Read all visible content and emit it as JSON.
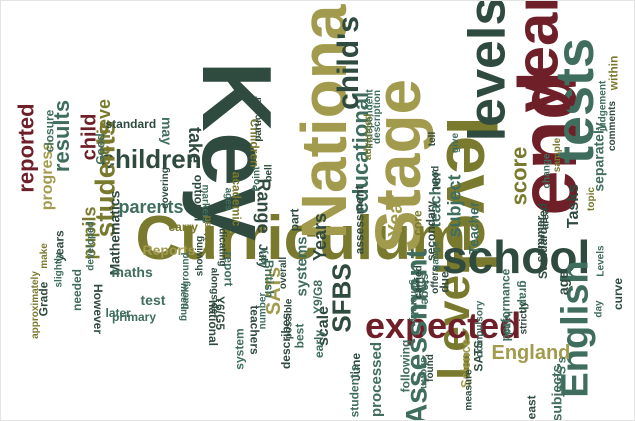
{
  "palette": {
    "dark_green": "#2f4a3e",
    "teal": "#3f6d5e",
    "olive": "#7a7a2e",
    "khaki": "#a29a4c",
    "maroon": "#6e1f28"
  },
  "words": [
    {
      "text": "Curriculum",
      "color": "olive"
    },
    {
      "text": "Key",
      "color": "dark_green"
    },
    {
      "text": "Stage",
      "color": "khaki"
    },
    {
      "text": "National",
      "color": "khaki"
    },
    {
      "text": "end",
      "color": "maroon"
    },
    {
      "text": "level",
      "color": "olive"
    },
    {
      "text": "tests",
      "color": "teal"
    },
    {
      "text": "Level",
      "color": "olive"
    },
    {
      "text": "year",
      "color": "maroon"
    },
    {
      "text": "levels",
      "color": "dark_green"
    },
    {
      "text": "school",
      "color": "dark_green"
    },
    {
      "text": "expected",
      "color": "maroon"
    },
    {
      "text": "English",
      "color": "teal"
    },
    {
      "text": "Assessment",
      "color": "teal"
    },
    {
      "text": "children",
      "color": "dark_green"
    },
    {
      "text": "students",
      "color": "olive"
    },
    {
      "text": "educational",
      "color": "teal"
    },
    {
      "text": "child's",
      "color": "dark_green"
    },
    {
      "text": "SFBS",
      "color": "dark_green"
    },
    {
      "text": "England",
      "color": "khaki"
    },
    {
      "text": "reported",
      "color": "maroon"
    },
    {
      "text": "results",
      "color": "teal"
    },
    {
      "text": "child",
      "color": "maroon"
    },
    {
      "text": "pupils",
      "color": "olive"
    },
    {
      "text": "achieve",
      "color": "olive"
    },
    {
      "text": "parents",
      "color": "teal"
    },
    {
      "text": "take",
      "color": "dark_green"
    },
    {
      "text": "Range",
      "color": "dark_green"
    },
    {
      "text": "score",
      "color": "olive"
    },
    {
      "text": "subject",
      "color": "teal"
    },
    {
      "text": "Year",
      "color": "khaki"
    },
    {
      "text": "Years",
      "color": "dark_green"
    },
    {
      "text": "SATs",
      "color": "khaki"
    },
    {
      "text": "systems",
      "color": "teal"
    },
    {
      "text": "scale",
      "color": "dark_green"
    },
    {
      "text": "processed",
      "color": "teal"
    },
    {
      "text": "Tasks",
      "color": "dark_green"
    },
    {
      "text": "teacher",
      "color": "teal"
    },
    {
      "text": "Teacher",
      "color": "teal"
    },
    {
      "text": "least",
      "color": "dark_green"
    },
    {
      "text": "progress",
      "color": "khaki"
    },
    {
      "text": "closure",
      "color": "teal"
    },
    {
      "text": "Mathematics",
      "color": "dark_green"
    },
    {
      "text": "maths",
      "color": "teal"
    },
    {
      "text": "standard",
      "color": "dark_green"
    },
    {
      "text": "may",
      "color": "teal"
    },
    {
      "text": "test",
      "color": "teal"
    },
    {
      "text": "Reports",
      "color": "khaki"
    },
    {
      "text": "optional",
      "color": "dark_green"
    },
    {
      "text": "academic",
      "color": "olive"
    },
    {
      "text": "British",
      "color": "teal"
    },
    {
      "text": "part",
      "color": "dark_green"
    },
    {
      "text": "assessment",
      "color": "dark_green"
    },
    {
      "text": "secondary",
      "color": "dark_green"
    },
    {
      "text": "stage",
      "color": "teal"
    },
    {
      "text": "performance",
      "color": "teal"
    },
    {
      "text": "Science",
      "color": "khaki"
    },
    {
      "text": "subjects",
      "color": "teal"
    },
    {
      "text": "Standardised",
      "color": "dark_green"
    },
    {
      "text": "age",
      "color": "dark_green"
    },
    {
      "text": "curve",
      "color": "dark_green"
    },
    {
      "text": "separately",
      "color": "teal"
    },
    {
      "text": "within",
      "color": "olive"
    },
    {
      "text": "graph",
      "color": "teal"
    },
    {
      "text": "summer",
      "color": "dark_green"
    },
    {
      "text": "point",
      "color": "dark_green"
    },
    {
      "text": "give",
      "color": "teal"
    },
    {
      "text": "core",
      "color": "olive"
    },
    {
      "text": "due",
      "color": "dark_green"
    },
    {
      "text": "following",
      "color": "teal"
    },
    {
      "text": "June",
      "color": "dark_green"
    },
    {
      "text": "student's",
      "color": "teal"
    },
    {
      "text": "early",
      "color": "teal"
    },
    {
      "text": "best",
      "color": "teal"
    },
    {
      "text": "July",
      "color": "dark_green"
    },
    {
      "text": "Children",
      "color": "olive"
    },
    {
      "text": "report",
      "color": "teal"
    },
    {
      "text": "describes",
      "color": "dark_green"
    },
    {
      "text": "teachers",
      "color": "dark_green"
    },
    {
      "text": "national",
      "color": "dark_green"
    },
    {
      "text": "system",
      "color": "teal"
    },
    {
      "text": "Y6/G5",
      "color": "dark_green"
    },
    {
      "text": "Y9/G8",
      "color": "teal"
    },
    {
      "text": "later",
      "color": "teal"
    },
    {
      "text": "However",
      "color": "dark_green"
    },
    {
      "text": "primary",
      "color": "teal"
    },
    {
      "text": "years",
      "color": "dark_green"
    },
    {
      "text": "Grade",
      "color": "dark_green"
    },
    {
      "text": "needed",
      "color": "teal"
    },
    {
      "text": "Good",
      "color": "teal"
    },
    {
      "text": "carry",
      "color": "olive"
    },
    {
      "text": "SFS's",
      "color": "teal"
    },
    {
      "text": "SATS",
      "color": "dark_green"
    },
    {
      "text": "measure",
      "color": "dark_green"
    },
    {
      "text": "compulsory",
      "color": "teal"
    },
    {
      "text": "independent",
      "color": "teal"
    },
    {
      "text": "covering",
      "color": "dark_green"
    },
    {
      "text": "markers",
      "color": "teal"
    },
    {
      "text": "indicating",
      "color": "dark_green"
    },
    {
      "text": "ages",
      "color": "teal"
    },
    {
      "text": "Instead",
      "color": "olive"
    },
    {
      "text": "number",
      "color": "teal"
    },
    {
      "text": "possible",
      "color": "dark_green"
    },
    {
      "text": "alongside",
      "color": "dark_green"
    },
    {
      "text": "meeting",
      "color": "teal"
    },
    {
      "text": "showing",
      "color": "dark_green"
    },
    {
      "text": "background",
      "color": "teal"
    },
    {
      "text": "approximately",
      "color": "olive"
    },
    {
      "text": "developed",
      "color": "teal"
    },
    {
      "text": "make",
      "color": "olive"
    },
    {
      "text": "slightly",
      "color": "teal"
    },
    {
      "text": "overall",
      "color": "dark_green"
    },
    {
      "text": "description",
      "color": "teal"
    },
    {
      "text": "offers",
      "color": "dark_green"
    },
    {
      "text": "judgement",
      "color": "teal"
    },
    {
      "text": "comments",
      "color": "dark_green"
    },
    {
      "text": "sample",
      "color": "olive"
    },
    {
      "text": "generally",
      "color": "teal"
    },
    {
      "text": "carried",
      "color": "dark_green"
    },
    {
      "text": "shown",
      "color": "teal"
    },
    {
      "text": "found",
      "color": "dark_green"
    },
    {
      "text": "Levels",
      "color": "teal"
    },
    {
      "text": "topic",
      "color": "olive"
    },
    {
      "text": "strictly",
      "color": "dark_green"
    },
    {
      "text": "hand",
      "color": "teal"
    },
    {
      "text": "area",
      "color": "dark_green"
    },
    {
      "text": "gauge",
      "color": "teal"
    },
    {
      "text": "tell",
      "color": "dark_green"
    },
    {
      "text": "bell",
      "color": "dark_green"
    },
    {
      "text": "key",
      "color": "teal"
    },
    {
      "text": "Point",
      "color": "teal"
    },
    {
      "text": "change",
      "color": "teal"
    },
    {
      "text": "particular",
      "color": "dark_green"
    },
    {
      "text": "advanced",
      "color": "olive"
    },
    {
      "text": "day",
      "color": "teal"
    }
  ]
}
